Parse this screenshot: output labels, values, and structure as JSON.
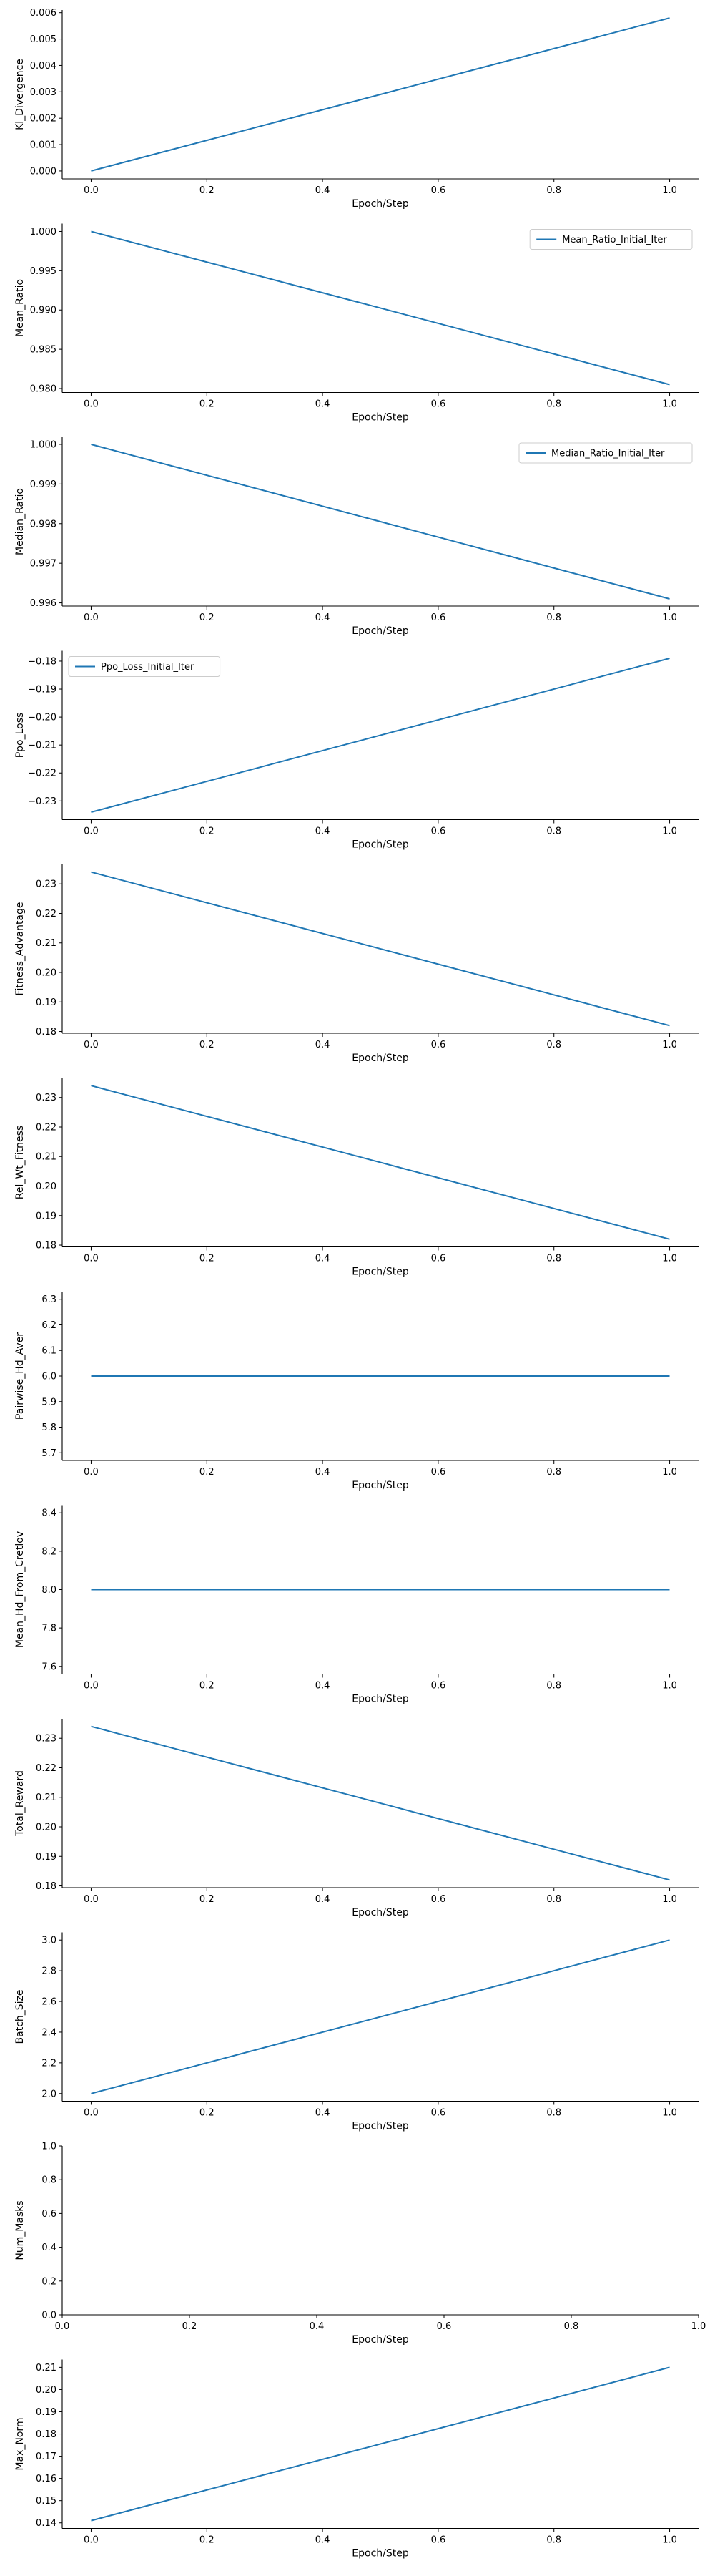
{
  "chart_data": [
    {
      "type": "line",
      "xlabel": "Epoch/Step",
      "ylabel": "Kl_Divergence",
      "x": [
        0.0,
        1.0
      ],
      "series": [
        {
          "values": [
            0.0,
            0.0058
          ]
        }
      ],
      "xlim": [
        -0.05,
        1.05
      ],
      "ylim": [
        -0.0003,
        0.0061
      ],
      "xticks": [
        "0.0",
        "0.2",
        "0.4",
        "0.6",
        "0.8",
        "1.0"
      ],
      "yticks": [
        "0.000",
        "0.001",
        "0.002",
        "0.003",
        "0.004",
        "0.005",
        "0.006"
      ],
      "legend": null,
      "grid": false,
      "color": "#1f77b4"
    },
    {
      "type": "line",
      "xlabel": "Epoch/Step",
      "ylabel": "Mean_Ratio",
      "x": [
        0.0,
        1.0
      ],
      "series": [
        {
          "name": "Mean_Ratio_Initial_Iter",
          "values": [
            1.0,
            0.9805
          ]
        }
      ],
      "xlim": [
        -0.05,
        1.05
      ],
      "ylim": [
        0.9795,
        1.001
      ],
      "xticks": [
        "0.0",
        "0.2",
        "0.4",
        "0.6",
        "0.8",
        "1.0"
      ],
      "yticks": [
        "0.980",
        "0.985",
        "0.990",
        "0.995",
        "1.000"
      ],
      "legend": "top-right",
      "grid": false,
      "color": "#1f77b4"
    },
    {
      "type": "line",
      "xlabel": "Epoch/Step",
      "ylabel": "Median_Ratio",
      "x": [
        0.0,
        1.0
      ],
      "series": [
        {
          "name": "Median_Ratio_Initial_Iter",
          "values": [
            1.0,
            0.9961
          ]
        }
      ],
      "xlim": [
        -0.05,
        1.05
      ],
      "ylim": [
        0.99592,
        1.00018
      ],
      "xticks": [
        "0.0",
        "0.2",
        "0.4",
        "0.6",
        "0.8",
        "1.0"
      ],
      "yticks": [
        "0.996",
        "0.997",
        "0.998",
        "0.999",
        "1.000"
      ],
      "legend": "top-right",
      "grid": false,
      "color": "#1f77b4"
    },
    {
      "type": "line",
      "xlabel": "Epoch/Step",
      "ylabel": "Ppo_Loss",
      "x": [
        0.0,
        1.0
      ],
      "series": [
        {
          "name": "Ppo_Loss_Initial_Iter",
          "values": [
            -0.234,
            -0.179
          ]
        }
      ],
      "xlim": [
        -0.05,
        1.05
      ],
      "ylim": [
        -0.2367,
        -0.1763
      ],
      "xticks": [
        "0.0",
        "0.2",
        "0.4",
        "0.6",
        "0.8",
        "1.0"
      ],
      "yticks": [
        "−0.23",
        "−0.22",
        "−0.21",
        "−0.20",
        "−0.19",
        "−0.18"
      ],
      "legend": "top-left",
      "grid": false,
      "color": "#1f77b4"
    },
    {
      "type": "line",
      "xlabel": "Epoch/Step",
      "ylabel": "Fitness_Advantage",
      "x": [
        0.0,
        1.0
      ],
      "series": [
        {
          "values": [
            0.234,
            0.182
          ]
        }
      ],
      "xlim": [
        -0.05,
        1.05
      ],
      "ylim": [
        0.1794,
        0.2366
      ],
      "xticks": [
        "0.0",
        "0.2",
        "0.4",
        "0.6",
        "0.8",
        "1.0"
      ],
      "yticks": [
        "0.18",
        "0.19",
        "0.20",
        "0.21",
        "0.22",
        "0.23"
      ],
      "legend": null,
      "grid": false,
      "color": "#1f77b4"
    },
    {
      "type": "line",
      "xlabel": "Epoch/Step",
      "ylabel": "Rel_Wt_Fitness",
      "x": [
        0.0,
        1.0
      ],
      "series": [
        {
          "values": [
            0.234,
            0.182
          ]
        }
      ],
      "xlim": [
        -0.05,
        1.05
      ],
      "ylim": [
        0.1794,
        0.2366
      ],
      "xticks": [
        "0.0",
        "0.2",
        "0.4",
        "0.6",
        "0.8",
        "1.0"
      ],
      "yticks": [
        "0.18",
        "0.19",
        "0.20",
        "0.21",
        "0.22",
        "0.23"
      ],
      "legend": null,
      "grid": false,
      "color": "#1f77b4"
    },
    {
      "type": "line",
      "xlabel": "Epoch/Step",
      "ylabel": "Pairwise_Hd_Aver",
      "x": [
        0.0,
        1.0
      ],
      "series": [
        {
          "values": [
            6.0,
            6.0
          ]
        }
      ],
      "xlim": [
        -0.05,
        1.05
      ],
      "ylim": [
        5.67,
        6.33
      ],
      "xticks": [
        "0.0",
        "0.2",
        "0.4",
        "0.6",
        "0.8",
        "1.0"
      ],
      "yticks": [
        "5.7",
        "5.8",
        "5.9",
        "6.0",
        "6.1",
        "6.2",
        "6.3"
      ],
      "legend": null,
      "grid": false,
      "color": "#1f77b4"
    },
    {
      "type": "line",
      "xlabel": "Epoch/Step",
      "ylabel": "Mean_Hd_From_Cretlov",
      "x": [
        0.0,
        1.0
      ],
      "series": [
        {
          "values": [
            8.0,
            8.0
          ]
        }
      ],
      "xlim": [
        -0.05,
        1.05
      ],
      "ylim": [
        7.56,
        8.44
      ],
      "xticks": [
        "0.0",
        "0.2",
        "0.4",
        "0.6",
        "0.8",
        "1.0"
      ],
      "yticks": [
        "7.6",
        "7.8",
        "8.0",
        "8.2",
        "8.4"
      ],
      "legend": null,
      "grid": false,
      "color": "#1f77b4"
    },
    {
      "type": "line",
      "xlabel": "Epoch/Step",
      "ylabel": "Total_Reward",
      "x": [
        0.0,
        1.0
      ],
      "series": [
        {
          "values": [
            0.234,
            0.182
          ]
        }
      ],
      "xlim": [
        -0.05,
        1.05
      ],
      "ylim": [
        0.1794,
        0.2366
      ],
      "xticks": [
        "0.0",
        "0.2",
        "0.4",
        "0.6",
        "0.8",
        "1.0"
      ],
      "yticks": [
        "0.18",
        "0.19",
        "0.20",
        "0.21",
        "0.22",
        "0.23"
      ],
      "legend": null,
      "grid": false,
      "color": "#1f77b4"
    },
    {
      "type": "line",
      "xlabel": "Epoch/Step",
      "ylabel": "Batch_Size",
      "x": [
        0.0,
        1.0
      ],
      "series": [
        {
          "values": [
            2.0,
            3.0
          ]
        }
      ],
      "xlim": [
        -0.05,
        1.05
      ],
      "ylim": [
        1.95,
        3.05
      ],
      "xticks": [
        "0.0",
        "0.2",
        "0.4",
        "0.6",
        "0.8",
        "1.0"
      ],
      "yticks": [
        "2.0",
        "2.2",
        "2.4",
        "2.6",
        "2.8",
        "3.0"
      ],
      "legend": null,
      "grid": false,
      "color": "#1f77b4"
    },
    {
      "type": "line",
      "xlabel": "Epoch/Step",
      "ylabel": "Num_Masks",
      "x": [],
      "series": [],
      "xlim": [
        0.0,
        1.0
      ],
      "ylim": [
        0.0,
        1.0
      ],
      "xticks": [
        "0.0",
        "0.2",
        "0.4",
        "0.6",
        "0.8",
        "1.0"
      ],
      "yticks": [
        "0.0",
        "0.2",
        "0.4",
        "0.6",
        "0.8",
        "1.0"
      ],
      "legend": null,
      "grid": false,
      "color": "#1f77b4"
    },
    {
      "type": "line",
      "xlabel": "Epoch/Step",
      "ylabel": "Max_Norm",
      "x": [
        0.0,
        1.0
      ],
      "series": [
        {
          "values": [
            0.141,
            0.21
          ]
        }
      ],
      "xlim": [
        -0.05,
        1.05
      ],
      "ylim": [
        0.1375,
        0.2135
      ],
      "xticks": [
        "0.0",
        "0.2",
        "0.4",
        "0.6",
        "0.8",
        "1.0"
      ],
      "yticks": [
        "0.14",
        "0.15",
        "0.16",
        "0.17",
        "0.18",
        "0.19",
        "0.20",
        "0.21"
      ],
      "legend": null,
      "grid": false,
      "color": "#1f77b4"
    }
  ]
}
